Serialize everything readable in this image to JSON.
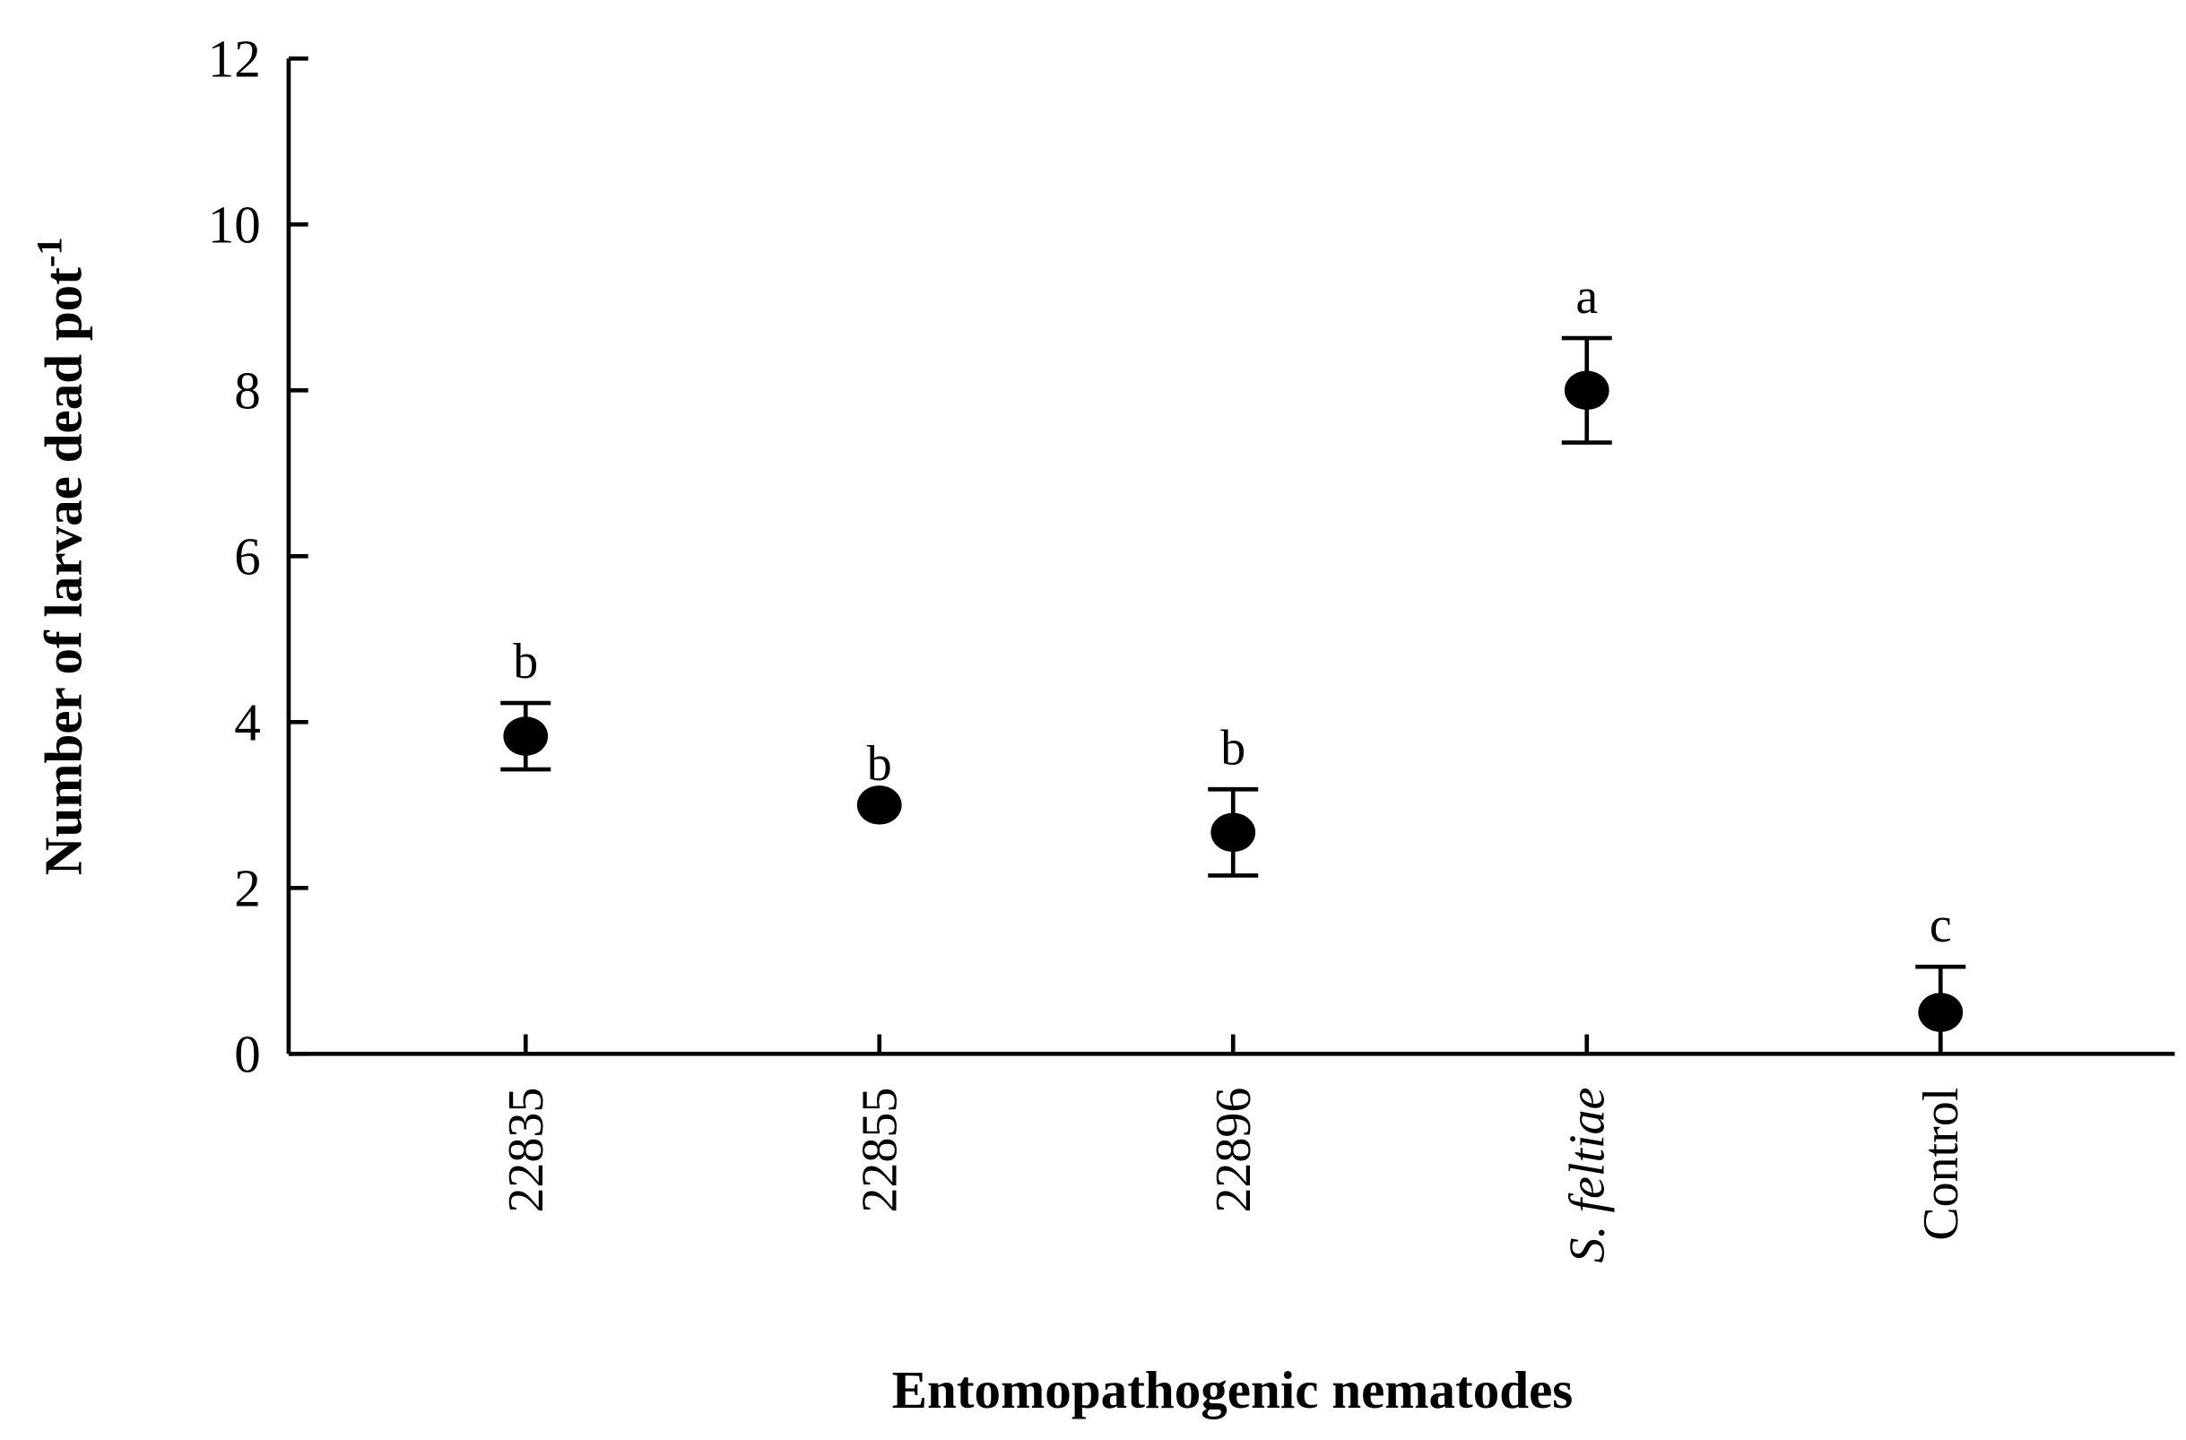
{
  "chart_data": {
    "type": "dot_errorbar",
    "xlabel": "Entomopathogenic nematodes",
    "ylabel": "Number of  larvae dead pot",
    "ylabel_superscript": "-1",
    "categories": [
      "22835",
      "22855",
      "22896",
      "S. feltiae",
      "Control"
    ],
    "values": [
      3.83,
      3.0,
      2.67,
      8.0,
      0.5
    ],
    "errors": [
      0.4,
      0,
      0.52,
      0.63,
      0.55
    ],
    "letters": [
      "b",
      "b",
      "b",
      "a",
      "c"
    ],
    "color": "#000000",
    "ylim": [
      0,
      12
    ],
    "yticks": [
      0,
      2,
      4,
      6,
      8,
      10,
      12
    ]
  }
}
